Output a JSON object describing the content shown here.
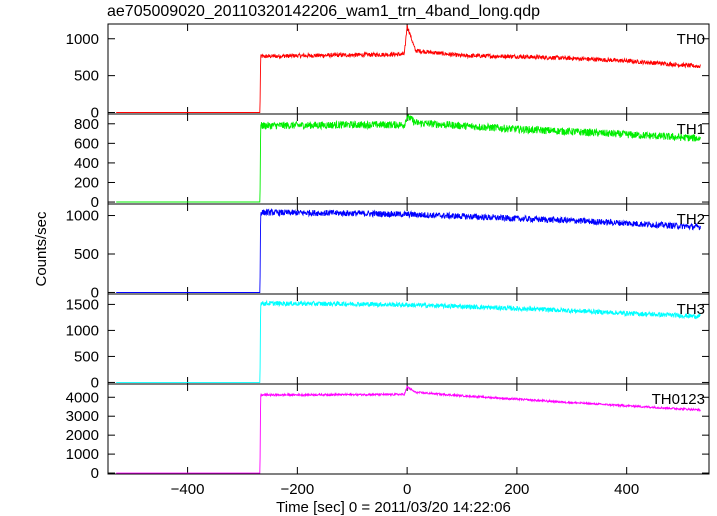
{
  "chart_data": {
    "type": "line",
    "title": "ae705009020_20110320142206_wam1_trn_4band_long.qdp",
    "xlabel": "Time [sec] 0 = 2011/03/20 14:22:06",
    "ylabel": "Counts/sec",
    "xlim": [
      -545,
      550
    ],
    "x_ticks": [
      -400,
      -200,
      0,
      200,
      400
    ],
    "x_tick_labels": [
      "−400",
      "−200",
      "0",
      "200",
      "400"
    ],
    "data_x_range": [
      -530,
      535
    ],
    "panels": [
      {
        "name": "TH0",
        "color": "#ff0000",
        "ylim": [
          -20,
          1200
        ],
        "yticks": [
          0,
          500,
          1000
        ],
        "ytick_labels": [
          "0",
          "500",
          "1000"
        ],
        "points": [
          [
            -530,
            0
          ],
          [
            -268,
            0
          ],
          [
            -267,
            760
          ],
          [
            -200,
            770
          ],
          [
            -100,
            780
          ],
          [
            -5,
            790
          ],
          [
            0,
            1180
          ],
          [
            15,
            840
          ],
          [
            100,
            770
          ],
          [
            200,
            760
          ],
          [
            300,
            735
          ],
          [
            400,
            700
          ],
          [
            535,
            625
          ]
        ],
        "noise": 28
      },
      {
        "name": "TH1",
        "color": "#00ee00",
        "ylim": [
          -20,
          900
        ],
        "yticks": [
          0,
          200,
          400,
          600,
          800
        ],
        "ytick_labels": [
          "0",
          "200",
          "400",
          "600",
          "800"
        ],
        "points": [
          [
            -530,
            0
          ],
          [
            -268,
            0
          ],
          [
            -267,
            780
          ],
          [
            -100,
            790
          ],
          [
            -5,
            790
          ],
          [
            0,
            880
          ],
          [
            15,
            810
          ],
          [
            100,
            780
          ],
          [
            200,
            745
          ],
          [
            300,
            720
          ],
          [
            400,
            690
          ],
          [
            535,
            650
          ]
        ],
        "noise": 38
      },
      {
        "name": "TH2",
        "color": "#0000ff",
        "ylim": [
          -20,
          1150
        ],
        "yticks": [
          0,
          500,
          1000
        ],
        "ytick_labels": [
          "0",
          "500",
          "1000"
        ],
        "points": [
          [
            -530,
            0
          ],
          [
            -268,
            0
          ],
          [
            -267,
            1040
          ],
          [
            -100,
            1030
          ],
          [
            0,
            1015
          ],
          [
            100,
            990
          ],
          [
            200,
            960
          ],
          [
            300,
            935
          ],
          [
            400,
            900
          ],
          [
            535,
            850
          ]
        ],
        "noise": 40
      },
      {
        "name": "TH3",
        "color": "#00ffff",
        "ylim": [
          -30,
          1700
        ],
        "yticks": [
          0,
          500,
          1000,
          1500
        ],
        "ytick_labels": [
          "0",
          "500",
          "1000",
          "1500"
        ],
        "points": [
          [
            -530,
            0
          ],
          [
            -268,
            0
          ],
          [
            -267,
            1520
          ],
          [
            -100,
            1510
          ],
          [
            0,
            1490
          ],
          [
            100,
            1460
          ],
          [
            200,
            1420
          ],
          [
            300,
            1380
          ],
          [
            400,
            1330
          ],
          [
            535,
            1270
          ]
        ],
        "noise": 45
      },
      {
        "name": "TH0123",
        "color": "#ff00ff",
        "ylim": [
          -50,
          4700
        ],
        "yticks": [
          0,
          1000,
          2000,
          3000,
          4000
        ],
        "ytick_labels": [
          "0",
          "1000",
          "2000",
          "3000",
          "4000"
        ],
        "points": [
          [
            -530,
            0
          ],
          [
            -268,
            0
          ],
          [
            -267,
            4120
          ],
          [
            -100,
            4140
          ],
          [
            -5,
            4150
          ],
          [
            0,
            4550
          ],
          [
            15,
            4260
          ],
          [
            100,
            4080
          ],
          [
            200,
            3900
          ],
          [
            300,
            3720
          ],
          [
            400,
            3550
          ],
          [
            535,
            3330
          ]
        ],
        "noise": 50
      }
    ]
  }
}
